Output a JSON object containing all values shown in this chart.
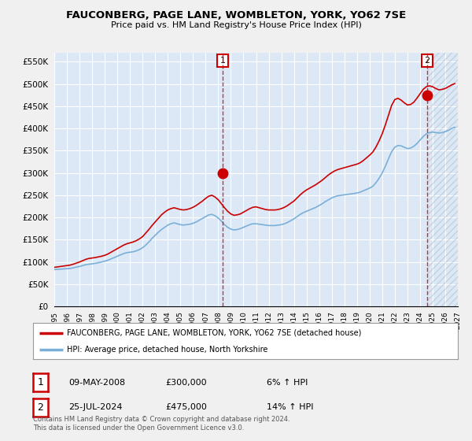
{
  "title": "FAUCONBERG, PAGE LANE, WOMBLETON, YORK, YO62 7SE",
  "subtitle": "Price paid vs. HM Land Registry's House Price Index (HPI)",
  "fig_bg_color": "#f0f0f0",
  "plot_bg_color": "#dce8f5",
  "plot_bg_color2": "#c8ddf0",
  "grid_color": "#ffffff",
  "ylim": [
    0,
    570000
  ],
  "yticks": [
    0,
    50000,
    100000,
    150000,
    200000,
    250000,
    300000,
    350000,
    400000,
    450000,
    500000,
    550000
  ],
  "ytick_labels": [
    "£0",
    "£50K",
    "£100K",
    "£150K",
    "£200K",
    "£250K",
    "£300K",
    "£350K",
    "£400K",
    "£450K",
    "£500K",
    "£550K"
  ],
  "sale1_x": 2008.36,
  "sale1_y": 300000,
  "sale1_label": "1",
  "sale1_date": "09-MAY-2008",
  "sale1_price": "£300,000",
  "sale1_hpi": "6% ↑ HPI",
  "sale2_x": 2024.56,
  "sale2_y": 475000,
  "sale2_label": "2",
  "sale2_date": "25-JUL-2024",
  "sale2_price": "£475,000",
  "sale2_hpi": "14% ↑ HPI",
  "legend_line1": "FAUCONBERG, PAGE LANE, WOMBLETON, YORK, YO62 7SE (detached house)",
  "legend_line2": "HPI: Average price, detached house, North Yorkshire",
  "footer": "Contains HM Land Registry data © Crown copyright and database right 2024.\nThis data is licensed under the Open Government Licence v3.0.",
  "hpi_color": "#7ab0d8",
  "price_color": "#cc0000",
  "xmin": 1995,
  "xmax": 2027,
  "hpi_data_x": [
    1995.0,
    1995.25,
    1995.5,
    1995.75,
    1996.0,
    1996.25,
    1996.5,
    1996.75,
    1997.0,
    1997.25,
    1997.5,
    1997.75,
    1998.0,
    1998.25,
    1998.5,
    1998.75,
    1999.0,
    1999.25,
    1999.5,
    1999.75,
    2000.0,
    2000.25,
    2000.5,
    2000.75,
    2001.0,
    2001.25,
    2001.5,
    2001.75,
    2002.0,
    2002.25,
    2002.5,
    2002.75,
    2003.0,
    2003.25,
    2003.5,
    2003.75,
    2004.0,
    2004.25,
    2004.5,
    2004.75,
    2005.0,
    2005.25,
    2005.5,
    2005.75,
    2006.0,
    2006.25,
    2006.5,
    2006.75,
    2007.0,
    2007.25,
    2007.5,
    2007.75,
    2008.0,
    2008.25,
    2008.5,
    2008.75,
    2009.0,
    2009.25,
    2009.5,
    2009.75,
    2010.0,
    2010.25,
    2010.5,
    2010.75,
    2011.0,
    2011.25,
    2011.5,
    2011.75,
    2012.0,
    2012.25,
    2012.5,
    2012.75,
    2013.0,
    2013.25,
    2013.5,
    2013.75,
    2014.0,
    2014.25,
    2014.5,
    2014.75,
    2015.0,
    2015.25,
    2015.5,
    2015.75,
    2016.0,
    2016.25,
    2016.5,
    2016.75,
    2017.0,
    2017.25,
    2017.5,
    2017.75,
    2018.0,
    2018.25,
    2018.5,
    2018.75,
    2019.0,
    2019.25,
    2019.5,
    2019.75,
    2020.0,
    2020.25,
    2020.5,
    2020.75,
    2021.0,
    2021.25,
    2021.5,
    2021.75,
    2022.0,
    2022.25,
    2022.5,
    2022.75,
    2023.0,
    2023.25,
    2023.5,
    2023.75,
    2024.0,
    2024.25,
    2024.5,
    2024.75,
    2025.0,
    2025.25,
    2025.5,
    2025.75,
    2026.0,
    2026.25,
    2026.5,
    2026.75
  ],
  "hpi_data_y": [
    83000,
    83500,
    84000,
    84500,
    85000,
    85500,
    87000,
    88500,
    90000,
    92000,
    94000,
    95000,
    96000,
    97000,
    98500,
    100000,
    102000,
    104000,
    107000,
    110000,
    113000,
    116000,
    119000,
    121000,
    122000,
    123000,
    125000,
    128000,
    132000,
    138000,
    145000,
    153000,
    160000,
    167000,
    173000,
    178000,
    183000,
    186000,
    188000,
    186000,
    184000,
    183000,
    184000,
    185000,
    187000,
    190000,
    194000,
    198000,
    202000,
    206000,
    207000,
    204000,
    199000,
    192000,
    184000,
    178000,
    174000,
    172000,
    173000,
    175000,
    178000,
    181000,
    184000,
    186000,
    186000,
    185000,
    184000,
    183000,
    182000,
    182000,
    182000,
    183000,
    184000,
    186000,
    189000,
    193000,
    197000,
    202000,
    207000,
    211000,
    214000,
    217000,
    220000,
    223000,
    227000,
    231000,
    236000,
    240000,
    244000,
    247000,
    249000,
    250000,
    251000,
    252000,
    253000,
    254000,
    255000,
    257000,
    260000,
    263000,
    266000,
    270000,
    278000,
    288000,
    300000,
    315000,
    332000,
    348000,
    358000,
    362000,
    361000,
    358000,
    355000,
    356000,
    360000,
    366000,
    374000,
    382000,
    388000,
    391000,
    392000,
    391000,
    390000,
    391000,
    393000,
    396000,
    400000,
    403000
  ],
  "price_data_x": [
    1995.0,
    1995.25,
    1995.5,
    1995.75,
    1996.0,
    1996.25,
    1996.5,
    1996.75,
    1997.0,
    1997.25,
    1997.5,
    1997.75,
    1998.0,
    1998.25,
    1998.5,
    1998.75,
    1999.0,
    1999.25,
    1999.5,
    1999.75,
    2000.0,
    2000.25,
    2000.5,
    2000.75,
    2001.0,
    2001.25,
    2001.5,
    2001.75,
    2002.0,
    2002.25,
    2002.5,
    2002.75,
    2003.0,
    2003.25,
    2003.5,
    2003.75,
    2004.0,
    2004.25,
    2004.5,
    2004.75,
    2005.0,
    2005.25,
    2005.5,
    2005.75,
    2006.0,
    2006.25,
    2006.5,
    2006.75,
    2007.0,
    2007.25,
    2007.5,
    2007.75,
    2008.0,
    2008.25,
    2008.5,
    2008.75,
    2009.0,
    2009.25,
    2009.5,
    2009.75,
    2010.0,
    2010.25,
    2010.5,
    2010.75,
    2011.0,
    2011.25,
    2011.5,
    2011.75,
    2012.0,
    2012.25,
    2012.5,
    2012.75,
    2013.0,
    2013.25,
    2013.5,
    2013.75,
    2014.0,
    2014.25,
    2014.5,
    2014.75,
    2015.0,
    2015.25,
    2015.5,
    2015.75,
    2016.0,
    2016.25,
    2016.5,
    2016.75,
    2017.0,
    2017.25,
    2017.5,
    2017.75,
    2018.0,
    2018.25,
    2018.5,
    2018.75,
    2019.0,
    2019.25,
    2019.5,
    2019.75,
    2020.0,
    2020.25,
    2020.5,
    2020.75,
    2021.0,
    2021.25,
    2021.5,
    2021.75,
    2022.0,
    2022.25,
    2022.5,
    2022.75,
    2023.0,
    2023.25,
    2023.5,
    2023.75,
    2024.0,
    2024.25,
    2024.5,
    2024.75,
    2025.0,
    2025.25,
    2025.5,
    2025.75,
    2026.0,
    2026.25,
    2026.5,
    2026.75
  ],
  "price_data_y": [
    88000,
    89000,
    90000,
    91000,
    92000,
    93000,
    95000,
    97500,
    100000,
    103000,
    106000,
    108000,
    109000,
    110000,
    111500,
    113000,
    115000,
    118000,
    122000,
    126000,
    130000,
    134000,
    138000,
    141000,
    143000,
    145000,
    148000,
    152000,
    157000,
    165000,
    173000,
    182000,
    190000,
    198000,
    206000,
    212000,
    217000,
    220000,
    222000,
    220000,
    218000,
    217000,
    218000,
    220000,
    223000,
    227000,
    232000,
    237000,
    243000,
    248000,
    250000,
    246000,
    240000,
    231000,
    222000,
    214000,
    208000,
    205000,
    206000,
    208000,
    212000,
    216000,
    220000,
    223000,
    224000,
    222000,
    220000,
    218000,
    217000,
    217000,
    217000,
    218000,
    220000,
    223000,
    227000,
    232000,
    237000,
    244000,
    251000,
    257000,
    262000,
    266000,
    270000,
    274000,
    279000,
    284000,
    290000,
    296000,
    301000,
    305000,
    308000,
    310000,
    312000,
    314000,
    316000,
    318000,
    320000,
    323000,
    328000,
    334000,
    340000,
    347000,
    358000,
    372000,
    388000,
    408000,
    430000,
    452000,
    465000,
    468000,
    464000,
    458000,
    453000,
    454000,
    459000,
    468000,
    478000,
    488000,
    494000,
    496000,
    494000,
    490000,
    487000,
    488000,
    490000,
    494000,
    498000,
    501000
  ]
}
